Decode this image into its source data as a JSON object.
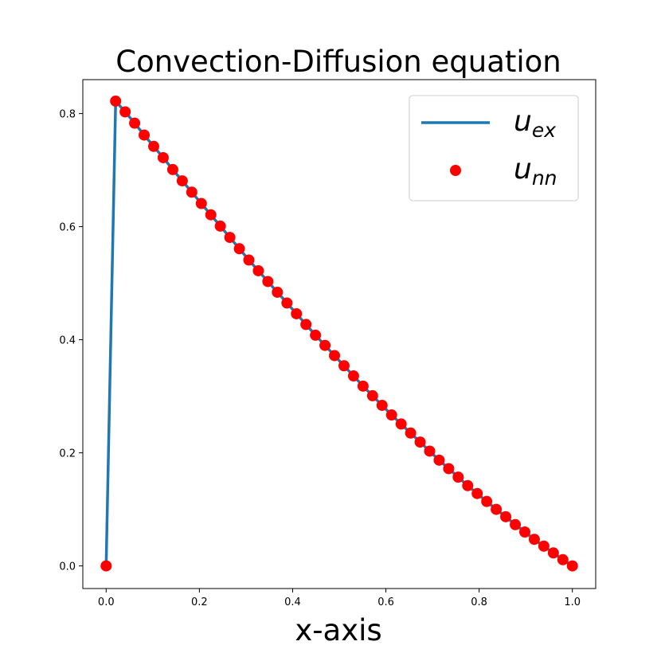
{
  "chart_data": {
    "type": "line",
    "title": "Convection-Diffusion equation",
    "xlabel": "x-axis",
    "ylabel": "",
    "xlim": [
      -0.05,
      1.05
    ],
    "ylim": [
      -0.04,
      0.86
    ],
    "xticks": [
      0.0,
      0.2,
      0.4,
      0.6,
      0.8,
      1.0
    ],
    "xtick_labels": [
      "0.0",
      "0.2",
      "0.4",
      "0.6",
      "0.8",
      "1.0"
    ],
    "yticks": [
      0.0,
      0.2,
      0.4,
      0.6,
      0.8
    ],
    "ytick_labels": [
      "0.0",
      "0.2",
      "0.4",
      "0.6",
      "0.8"
    ],
    "grid": false,
    "legend_position": "top-right",
    "series": [
      {
        "name": "u_ex",
        "legend_main": "u",
        "legend_sub": "ex",
        "style": "line",
        "color": "#1f77b4",
        "x": [
          0.0,
          0.0204,
          0.0408,
          0.0612,
          0.0816,
          0.102,
          0.1224,
          0.1429,
          0.1633,
          0.1837,
          0.2041,
          0.2245,
          0.2449,
          0.2653,
          0.2857,
          0.3061,
          0.3265,
          0.3469,
          0.3673,
          0.3878,
          0.4082,
          0.4286,
          0.449,
          0.4694,
          0.4898,
          0.5102,
          0.5306,
          0.551,
          0.5714,
          0.5918,
          0.6122,
          0.6327,
          0.6531,
          0.6735,
          0.6939,
          0.7143,
          0.7347,
          0.7551,
          0.7755,
          0.7959,
          0.8163,
          0.8367,
          0.8571,
          0.8776,
          0.898,
          0.9184,
          0.9388,
          0.9592,
          0.9796,
          1.0
        ],
        "y": [
          0.0,
          0.822,
          0.803,
          0.783,
          0.762,
          0.742,
          0.722,
          0.701,
          0.681,
          0.661,
          0.641,
          0.621,
          0.601,
          0.581,
          0.561,
          0.541,
          0.522,
          0.503,
          0.484,
          0.465,
          0.446,
          0.427,
          0.408,
          0.39,
          0.372,
          0.354,
          0.336,
          0.318,
          0.301,
          0.284,
          0.267,
          0.251,
          0.235,
          0.219,
          0.203,
          0.187,
          0.172,
          0.157,
          0.142,
          0.128,
          0.114,
          0.1,
          0.087,
          0.073,
          0.06,
          0.047,
          0.035,
          0.023,
          0.011,
          0.0
        ]
      },
      {
        "name": "u_nn",
        "legend_main": "u",
        "legend_sub": "nn",
        "style": "markers",
        "color": "#ff0000",
        "x": [
          0.0,
          0.0204,
          0.0408,
          0.0612,
          0.0816,
          0.102,
          0.1224,
          0.1429,
          0.1633,
          0.1837,
          0.2041,
          0.2245,
          0.2449,
          0.2653,
          0.2857,
          0.3061,
          0.3265,
          0.3469,
          0.3673,
          0.3878,
          0.4082,
          0.4286,
          0.449,
          0.4694,
          0.4898,
          0.5102,
          0.5306,
          0.551,
          0.5714,
          0.5918,
          0.6122,
          0.6327,
          0.6531,
          0.6735,
          0.6939,
          0.7143,
          0.7347,
          0.7551,
          0.7755,
          0.7959,
          0.8163,
          0.8367,
          0.8571,
          0.8776,
          0.898,
          0.9184,
          0.9388,
          0.9592,
          0.9796,
          1.0
        ],
        "y": [
          0.0,
          0.822,
          0.803,
          0.783,
          0.762,
          0.742,
          0.722,
          0.701,
          0.681,
          0.661,
          0.641,
          0.621,
          0.601,
          0.581,
          0.561,
          0.541,
          0.522,
          0.503,
          0.484,
          0.465,
          0.446,
          0.427,
          0.408,
          0.39,
          0.372,
          0.354,
          0.336,
          0.318,
          0.301,
          0.284,
          0.267,
          0.251,
          0.235,
          0.219,
          0.203,
          0.187,
          0.172,
          0.157,
          0.142,
          0.128,
          0.114,
          0.1,
          0.087,
          0.073,
          0.06,
          0.047,
          0.035,
          0.023,
          0.011,
          0.0
        ]
      }
    ]
  }
}
